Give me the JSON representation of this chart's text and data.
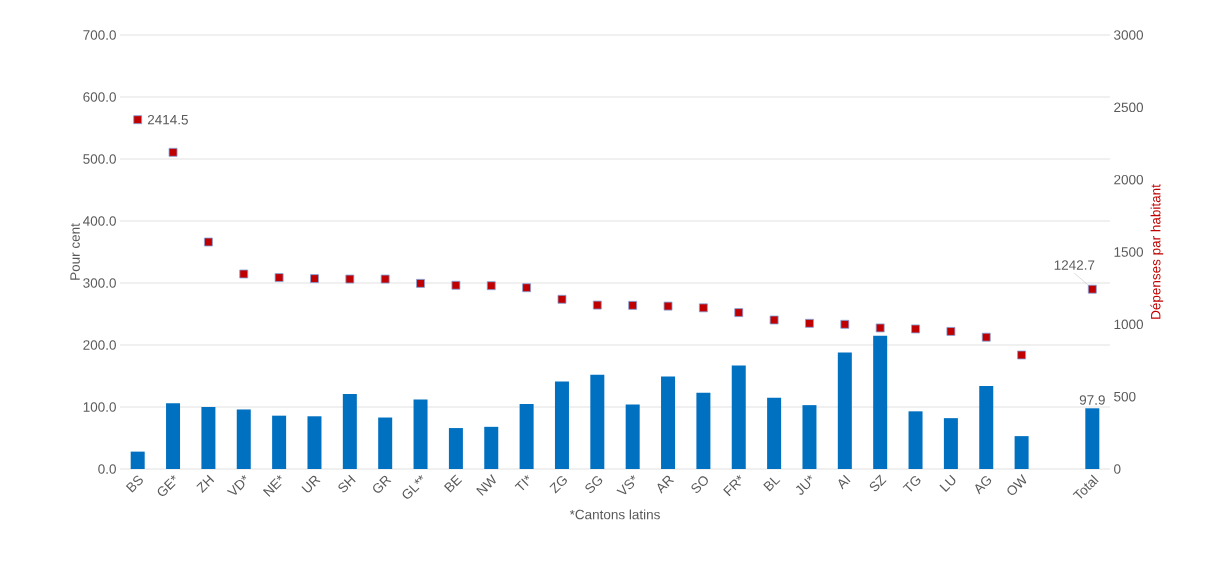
{
  "chart_data": {
    "type": "bar",
    "categories": [
      "BS",
      "GE*",
      "ZH",
      "VD*",
      "NE*",
      "UR",
      "SH",
      "GR",
      "GL**",
      "BE",
      "NW",
      "TI*",
      "ZG",
      "SG",
      "VS*",
      "AR",
      "SO",
      "FR*",
      "BL",
      "JU*",
      "AI",
      "SZ",
      "TG",
      "LU",
      "AG",
      "OW",
      null,
      "Total"
    ],
    "series": [
      {
        "color": "#0070c0",
        "values": [
          28,
          106,
          100,
          96,
          86,
          85,
          121,
          83,
          112,
          66,
          68,
          105,
          141,
          152,
          104,
          149,
          123,
          167,
          115,
          103,
          188,
          215,
          93,
          82,
          134,
          53,
          null,
          97.9
        ],
        "value_labels": [
          null,
          null,
          null,
          null,
          null,
          null,
          null,
          null,
          null,
          null,
          null,
          null,
          null,
          null,
          null,
          null,
          null,
          null,
          null,
          null,
          null,
          null,
          null,
          null,
          null,
          null,
          null,
          "97.9"
        ]
      },
      {
        "type": "scatter",
        "axis": "y2",
        "color": "#c00000",
        "values": [
          2414.5,
          2189,
          1569,
          1348,
          1323,
          1316,
          1313,
          1313,
          1283,
          1270,
          1267,
          1253,
          1173,
          1133,
          1131,
          1126,
          1114,
          1081,
          1030,
          1007,
          1000,
          975,
          968,
          951,
          911,
          788,
          null,
          1242.7
        ],
        "value_labels": [
          "2414.5",
          null,
          null,
          null,
          null,
          null,
          null,
          null,
          null,
          null,
          null,
          null,
          null,
          null,
          null,
          null,
          null,
          null,
          null,
          null,
          null,
          null,
          null,
          null,
          null,
          null,
          null,
          "1242.7"
        ]
      }
    ],
    "xlabel": "*Cantons latins",
    "ylabel": "Pour cent",
    "y2label": "Dépenses par habitant",
    "ylim": [
      0,
      700
    ],
    "yticks": [
      {
        "value": 0,
        "label": "0.0"
      },
      {
        "value": 100,
        "label": "100.0"
      },
      {
        "value": 200,
        "label": "200.0"
      },
      {
        "value": 300,
        "label": "300.0"
      },
      {
        "value": 400,
        "label": "400.0"
      },
      {
        "value": 500,
        "label": "500.0"
      },
      {
        "value": 600,
        "label": "600.0"
      },
      {
        "value": 700,
        "label": "700.0"
      }
    ],
    "y2lim": [
      0,
      3000
    ],
    "y2ticks": [
      0,
      500,
      1000,
      1500,
      2000,
      2500,
      3000
    ],
    "grid": "y",
    "marker": "square"
  }
}
